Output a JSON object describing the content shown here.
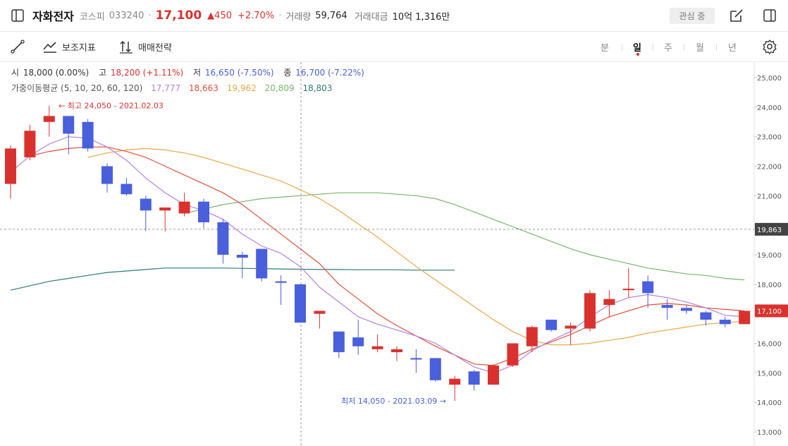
{
  "header": {
    "stock_name": "자화전자",
    "market": "코스피",
    "code": "033240",
    "price": "17,100",
    "change": "▲450",
    "change_pct": "+2.70%",
    "volume_label": "거래량",
    "volume": "59,764",
    "amount_label": "거래대금",
    "amount": "10억 1,316만",
    "watch_label": "관심 중"
  },
  "toolbar": {
    "indicator_label": "보조지표",
    "strategy_label": "매매전략",
    "periods": [
      "분",
      "일",
      "주",
      "월",
      "년"
    ],
    "active_period": "일"
  },
  "info": {
    "open_label": "시",
    "open_value": "18,000 (0.00%)",
    "high_label": "고",
    "high_value": "18,200 (+1.11%)",
    "low_label": "저",
    "low_value": "16,650 (-7.50%)",
    "close_label": "종",
    "close_value": "16,700 (-7.22%)",
    "ma_label": "가중이동평균 (5, 10, 20, 60, 120)",
    "ma_values": [
      "17,777",
      "18,663",
      "19,962",
      "20,809",
      "18,803"
    ]
  },
  "colors": {
    "up": "#d9322e",
    "down": "#4a5fdc",
    "ma5": "#b87fe0",
    "ma10": "#e0503a",
    "ma20": "#eca64a",
    "ma60": "#79b56a",
    "ma120": "#2f7a78"
  },
  "chart_data": {
    "type": "candlestick",
    "y_ticks": [
      "13,000",
      "14,000",
      "15,000",
      "16,000",
      "17,000",
      "18,000",
      "19,000",
      "20,000",
      "21,000",
      "22,000",
      "23,000",
      "24,000",
      "25,000"
    ],
    "ylim": [
      12600,
      25400
    ],
    "crosshair_price": "19,863",
    "crosshair_value": 19863,
    "last_price_label": "17,100",
    "last_price_value": 17100,
    "max_label": "← 최고 24,050 - 2021.02.03",
    "min_label": "최저 14,050 - 2021.03.09 →",
    "candles": [
      {
        "o": 21400,
        "h": 22700,
        "l": 20900,
        "c": 22600
      },
      {
        "o": 22300,
        "h": 23400,
        "l": 22200,
        "c": 23200
      },
      {
        "o": 23500,
        "h": 24050,
        "l": 23000,
        "c": 23700
      },
      {
        "o": 23700,
        "h": 23700,
        "l": 22400,
        "c": 23100
      },
      {
        "o": 23500,
        "h": 23600,
        "l": 22500,
        "c": 22600
      },
      {
        "o": 22000,
        "h": 22100,
        "l": 21100,
        "c": 21400
      },
      {
        "o": 21400,
        "h": 21600,
        "l": 21000,
        "c": 21050
      },
      {
        "o": 20900,
        "h": 21000,
        "l": 19800,
        "c": 20500
      },
      {
        "o": 20500,
        "h": 20600,
        "l": 19800,
        "c": 20600
      },
      {
        "o": 20400,
        "h": 21100,
        "l": 20300,
        "c": 20800
      },
      {
        "o": 20800,
        "h": 20900,
        "l": 19900,
        "c": 20100
      },
      {
        "o": 20100,
        "h": 20200,
        "l": 18700,
        "c": 19000
      },
      {
        "o": 19000,
        "h": 19100,
        "l": 18200,
        "c": 18900
      },
      {
        "o": 19200,
        "h": 19200,
        "l": 18100,
        "c": 18200
      },
      {
        "o": 18100,
        "h": 18300,
        "l": 17300,
        "c": 18050
      },
      {
        "o": 18000,
        "h": 18000,
        "l": 16700,
        "c": 16700
      },
      {
        "o": 17000,
        "h": 17100,
        "l": 16500,
        "c": 17100
      },
      {
        "o": 16400,
        "h": 16400,
        "l": 15500,
        "c": 15700
      },
      {
        "o": 16200,
        "h": 16800,
        "l": 15600,
        "c": 15900
      },
      {
        "o": 15800,
        "h": 16300,
        "l": 15700,
        "c": 15900
      },
      {
        "o": 15700,
        "h": 15900,
        "l": 15400,
        "c": 15800
      },
      {
        "o": 15500,
        "h": 15800,
        "l": 15000,
        "c": 15450
      },
      {
        "o": 15500,
        "h": 15500,
        "l": 14700,
        "c": 14750
      },
      {
        "o": 14600,
        "h": 14900,
        "l": 14050,
        "c": 14800
      },
      {
        "o": 15050,
        "h": 15100,
        "l": 14400,
        "c": 14600
      },
      {
        "o": 14600,
        "h": 15300,
        "l": 14600,
        "c": 15250
      },
      {
        "o": 15250,
        "h": 16000,
        "l": 15200,
        "c": 16000
      },
      {
        "o": 15900,
        "h": 16600,
        "l": 15700,
        "c": 16550
      },
      {
        "o": 16800,
        "h": 16800,
        "l": 16400,
        "c": 16450
      },
      {
        "o": 16500,
        "h": 16700,
        "l": 15950,
        "c": 16600
      },
      {
        "o": 16500,
        "h": 17800,
        "l": 16400,
        "c": 17700
      },
      {
        "o": 17300,
        "h": 17800,
        "l": 16900,
        "c": 17500
      },
      {
        "o": 17800,
        "h": 18550,
        "l": 17550,
        "c": 17850
      },
      {
        "o": 18100,
        "h": 18300,
        "l": 17200,
        "c": 17700
      },
      {
        "o": 17300,
        "h": 17500,
        "l": 16800,
        "c": 17200
      },
      {
        "o": 17200,
        "h": 17300,
        "l": 17000,
        "c": 17100
      },
      {
        "o": 17050,
        "h": 17100,
        "l": 16600,
        "c": 16800
      },
      {
        "o": 16800,
        "h": 16900,
        "l": 16550,
        "c": 16650
      },
      {
        "o": 16650,
        "h": 17100,
        "l": 16650,
        "c": 17100
      }
    ],
    "ma_lines": {
      "ma5": [
        21800,
        22350,
        22750,
        23000,
        22950,
        22650,
        22200,
        21600,
        21100,
        20700,
        20500,
        20200,
        19700,
        19300,
        19050,
        18600,
        17900,
        17400,
        16900,
        16650,
        16450,
        16250,
        16000,
        15600,
        15200,
        15000,
        15250,
        15750,
        16100,
        16400,
        16900,
        17300,
        17550,
        17650,
        17550,
        17400,
        17200,
        16950,
        16900
      ],
      "ma10": [
        22350,
        22500,
        22600,
        22650,
        22650,
        22500,
        22300,
        22000,
        21700,
        21400,
        21100,
        20700,
        20200,
        19700,
        19200,
        18700,
        18000,
        17500,
        17000,
        16600,
        16250,
        15900,
        15600,
        15300,
        15250,
        15500,
        15800,
        16050,
        16300,
        16600,
        16900,
        17100,
        17300,
        17350,
        17300,
        17200,
        17150,
        17100
      ],
      "ma20": [
        22300,
        22450,
        22550,
        22600,
        22550,
        22450,
        22300,
        22100,
        21900,
        21700,
        21500,
        21200,
        20900,
        20500,
        20050,
        19600,
        19100,
        18600,
        18150,
        17700,
        17250,
        16800,
        16400,
        16100,
        15950,
        15950,
        16000,
        16100,
        16200,
        16350,
        16450,
        16550,
        16650,
        16700,
        16750
      ],
      "ma60": [
        20400,
        20550,
        20700,
        20800,
        20900,
        20950,
        21000,
        21050,
        21100,
        21100,
        21100,
        21050,
        21000,
        20900,
        20700,
        20450,
        20200,
        19950,
        19700,
        19450,
        19200,
        19000,
        18850,
        18700,
        18550,
        18450,
        18350,
        18300,
        18200,
        18150
      ],
      "ma120": [
        17800,
        17950,
        18100,
        18200,
        18300,
        18400,
        18450,
        18500,
        18550,
        18550,
        18550,
        18550,
        18540,
        18530,
        18520,
        18510,
        18500,
        18500,
        18490,
        18490,
        18490,
        18480,
        18480,
        18480
      ]
    }
  }
}
